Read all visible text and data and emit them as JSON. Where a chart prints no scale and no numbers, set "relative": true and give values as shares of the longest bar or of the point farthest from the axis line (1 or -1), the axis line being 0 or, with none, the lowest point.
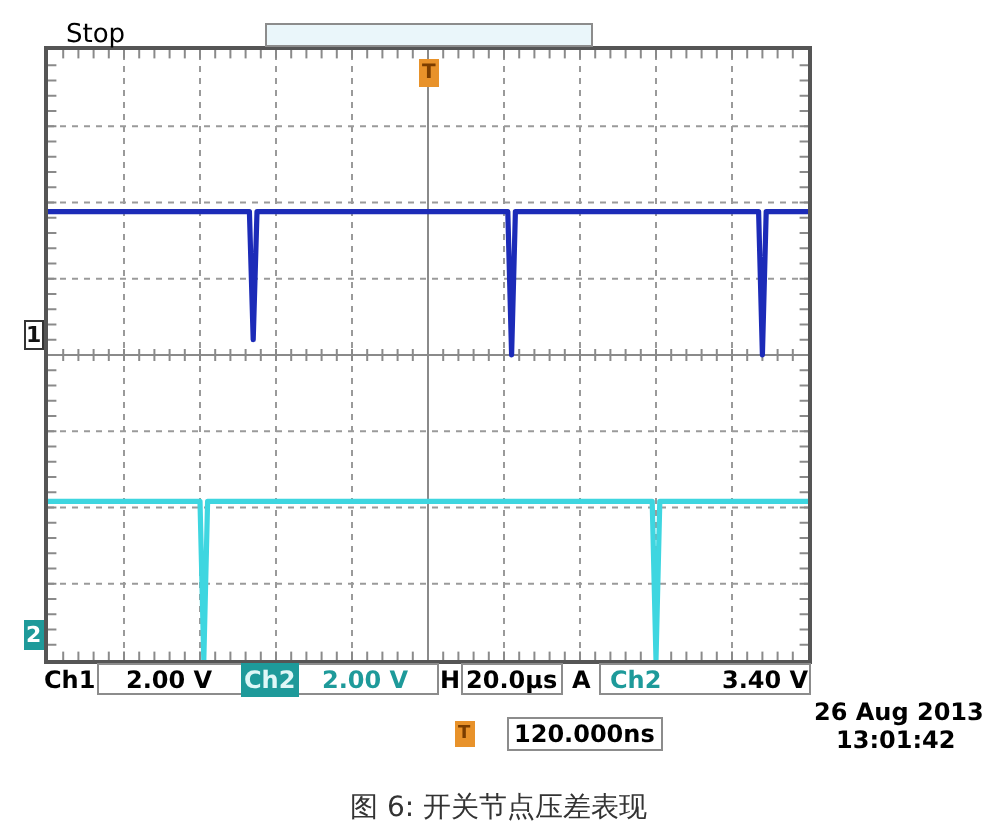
{
  "chart_data": {
    "type": "line",
    "relative": true,
    "grid": true,
    "categories": [
      null,
      null,
      null,
      null,
      null,
      null,
      null,
      null,
      null,
      null,
      null,
      null,
      null,
      null,
      null,
      null,
      null,
      null,
      null,
      null,
      null,
      null,
      null,
      null,
      null,
      null,
      null,
      null,
      null,
      null,
      null,
      null,
      null,
      null,
      null,
      null,
      null,
      null,
      null,
      null,
      null,
      null,
      null,
      null,
      null,
      null,
      null,
      null,
      null,
      null,
      null,
      null,
      null,
      null,
      null,
      null,
      null,
      null,
      null,
      null,
      null,
      null,
      null,
      null,
      null,
      null,
      null,
      null,
      null,
      null,
      null,
      null,
      null,
      null,
      null,
      null,
      null,
      null,
      null,
      null,
      null,
      null,
      null,
      null,
      null,
      null,
      null,
      null,
      null,
      null,
      null,
      null,
      null,
      null,
      null,
      null,
      null,
      null,
      null,
      null,
      null,
      null,
      null,
      null,
      null,
      null,
      null,
      null,
      null,
      null,
      null,
      null,
      null,
      null,
      null,
      null,
      null,
      null,
      null,
      null,
      null,
      null,
      null,
      null,
      null,
      null,
      null,
      null,
      null,
      null,
      null,
      null,
      null,
      null,
      null,
      null,
      null,
      null,
      null,
      null,
      null,
      null,
      null,
      null,
      null,
      null,
      null,
      null,
      null,
      null,
      null,
      null,
      null,
      null,
      null,
      null,
      null,
      null,
      null,
      null,
      null,
      null,
      null,
      null,
      null,
      null,
      null,
      null,
      null,
      null,
      null,
      null,
      null,
      null,
      null,
      null,
      null,
      null,
      null,
      null,
      null,
      null,
      null,
      null,
      null,
      null,
      null,
      null,
      null,
      null,
      null,
      null,
      null,
      null,
      null,
      null,
      null,
      null,
      null,
      null,
      null
    ],
    "series": [
      {
        "color": "#1c2bb8",
        "values": [
          0.47,
          0.47,
          0.47,
          0.47,
          0.47,
          0.47,
          0.47,
          0.47,
          0.47,
          0.47,
          0.47,
          0.47,
          0.47,
          0.47,
          0.47,
          0.47,
          0.47,
          0.47,
          0.47,
          0.47,
          0.47,
          0.47,
          0.47,
          0.47,
          0.47,
          0.47,
          0.47,
          0.47,
          0.47,
          0.47,
          0.47,
          0.47,
          0.47,
          0.47,
          0.47,
          0.47,
          0.47,
          0.47,
          0.47,
          0.47,
          0.47,
          0.47,
          0.47,
          0.47,
          0.47,
          0.47,
          0.47,
          0.47,
          0.47,
          0.47,
          0.47,
          0.47,
          0.47,
          0.47,
          0.05,
          0.47,
          0.47,
          0.47,
          0.47,
          0.47,
          0.47,
          0.47,
          0.47,
          0.47,
          0.47,
          0.47,
          0.47,
          0.47,
          0.47,
          0.47,
          0.47,
          0.47,
          0.47,
          0.47,
          0.47,
          0.47,
          0.47,
          0.47,
          0.47,
          0.47,
          0.47,
          0.47,
          0.47,
          0.47,
          0.47,
          0.47,
          0.47,
          0.47,
          0.47,
          0.47,
          0.47,
          0.47,
          0.47,
          0.47,
          0.47,
          0.47,
          0.47,
          0.47,
          0.47,
          0.47,
          0.47,
          0.47,
          0.47,
          0.47,
          0.47,
          0.47,
          0.47,
          0.47,
          0.47,
          0.47,
          0.47,
          0.47,
          0.47,
          0.47,
          0.47,
          0.47,
          0.47,
          0.47,
          0.47,
          0.47,
          0.47,
          0.47,
          0,
          0.47,
          0.47,
          0.47,
          0.47,
          0.47,
          0.47,
          0.47,
          0.47,
          0.47,
          0.47,
          0.47,
          0.47,
          0.47,
          0.47,
          0.47,
          0.47,
          0.47,
          0.47,
          0.47,
          0.47,
          0.47,
          0.47,
          0.47,
          0.47,
          0.47,
          0.47,
          0.47,
          0.47,
          0.47,
          0.47,
          0.47,
          0.47,
          0.47,
          0.47,
          0.47,
          0.47,
          0.47,
          0.47,
          0.47,
          0.47,
          0.47,
          0.47,
          0.47,
          0.47,
          0.47,
          0.47,
          0.47,
          0.47,
          0.47,
          0.47,
          0.47,
          0.47,
          0.47,
          0.47,
          0.47,
          0.47,
          0.47,
          0.47,
          0.47,
          0.47,
          0.47,
          0.47,
          0.47,
          0.47,
          0.47,
          0,
          0.47,
          0.47,
          0.47,
          0.47,
          0.47,
          0.47,
          0.47,
          0.47,
          0.47,
          0.47,
          0.47,
          0.47
        ]
      },
      {
        "color": "#3ed6e0",
        "values": [
          -0.48,
          -0.48,
          -0.48,
          -0.48,
          -0.48,
          -0.48,
          -0.48,
          -0.48,
          -0.48,
          -0.48,
          -0.48,
          -0.48,
          -0.48,
          -0.48,
          -0.48,
          -0.48,
          -0.48,
          -0.48,
          -0.48,
          -0.48,
          -0.48,
          -0.48,
          -0.48,
          -0.48,
          -0.48,
          -0.48,
          -0.48,
          -0.48,
          -0.48,
          -0.48,
          -0.48,
          -0.48,
          -0.48,
          -0.48,
          -0.48,
          -0.48,
          -0.48,
          -0.48,
          -0.48,
          -0.48,
          -0.48,
          -1,
          -0.48,
          -0.48,
          -0.48,
          -0.48,
          -0.48,
          -0.48,
          -0.48,
          -0.48,
          -0.48,
          -0.48,
          -0.48,
          -0.48,
          -0.48,
          -0.48,
          -0.48,
          -0.48,
          -0.48,
          -0.48,
          -0.48,
          -0.48,
          -0.48,
          -0.48,
          -0.48,
          -0.48,
          -0.48,
          -0.48,
          -0.48,
          -0.48,
          -0.48,
          -0.48,
          -0.48,
          -0.48,
          -0.48,
          -0.48,
          -0.48,
          -0.48,
          -0.48,
          -0.48,
          -0.48,
          -0.48,
          -0.48,
          -0.48,
          -0.48,
          -0.48,
          -0.48,
          -0.48,
          -0.48,
          -0.48,
          -0.48,
          -0.48,
          -0.48,
          -0.48,
          -0.48,
          -0.48,
          -0.48,
          -0.48,
          -0.48,
          -0.48,
          -0.48,
          -0.48,
          -0.48,
          -0.48,
          -0.48,
          -0.48,
          -0.48,
          -0.48,
          -0.48,
          -0.48,
          -0.48,
          -0.48,
          -0.48,
          -0.48,
          -0.48,
          -0.48,
          -0.48,
          -0.48,
          -0.48,
          -0.48,
          -0.48,
          -0.48,
          -0.48,
          -0.48,
          -0.48,
          -0.48,
          -0.48,
          -0.48,
          -0.48,
          -0.48,
          -0.48,
          -0.48,
          -0.48,
          -0.48,
          -0.48,
          -0.48,
          -0.48,
          -0.48,
          -0.48,
          -0.48,
          -0.48,
          -0.48,
          -0.48,
          -0.48,
          -0.48,
          -0.48,
          -0.48,
          -0.48,
          -0.48,
          -0.48,
          -0.48,
          -0.48,
          -0.48,
          -0.48,
          -0.48,
          -0.48,
          -0.48,
          -0.48,
          -0.48,
          -0.48,
          -1,
          -0.48,
          -0.48,
          -0.48,
          -0.48,
          -0.48,
          -0.48,
          -0.48,
          -0.48,
          -0.48,
          -0.48,
          -0.48,
          -0.48,
          -0.48,
          -0.48,
          -0.48,
          -0.48,
          -0.48,
          -0.48,
          -0.48,
          -0.48,
          -0.48,
          -0.48,
          -0.48,
          -0.48,
          -0.48,
          -0.48,
          -0.48,
          -0.48,
          -0.48,
          -0.48,
          -0.48,
          -0.48,
          -0.48,
          -0.48,
          -0.48,
          -0.48,
          -0.48,
          -0.48,
          -0.48,
          -0.48
        ]
      }
    ],
    "annotations": [
      "Stop",
      "Ch1",
      "2.00 V",
      "Ch2",
      "2.00 V",
      "H",
      "20.0µs",
      "A",
      "Ch2",
      "3.40 V",
      "T",
      "T",
      "120.000ns",
      "26 Aug 2013",
      "13:01:42",
      "图 6: 开关节点压差表现",
      "1",
      "2"
    ]
  }
}
